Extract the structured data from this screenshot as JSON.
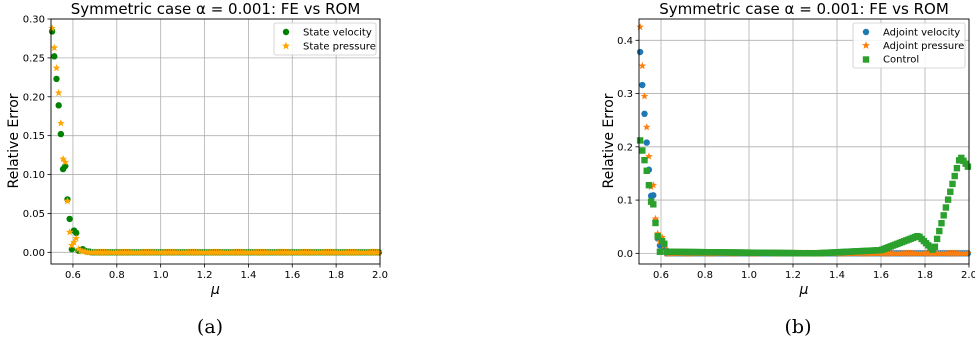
{
  "chart_data": [
    {
      "type": "scatter",
      "title": "Symmetric case α = 0.001: FE vs ROM",
      "xlabel": "μ",
      "ylabel": "Relative Error",
      "xlim": [
        0.5,
        2.0
      ],
      "ylim": [
        -0.015,
        0.3
      ],
      "xticks": [
        "0.6",
        "0.8",
        "1.0",
        "1.2",
        "1.4",
        "1.6",
        "1.8",
        "2.0"
      ],
      "yticks": [
        "0.00",
        "0.05",
        "0.10",
        "0.15",
        "0.20",
        "0.25",
        "0.30"
      ],
      "grid": true,
      "legend_position": "top-right",
      "caption": "(a)",
      "series": [
        {
          "name": "State velocity",
          "marker": "circle",
          "color": "#008000",
          "x": [
            0.505,
            0.515,
            0.525,
            0.535,
            0.545,
            0.555,
            0.565,
            0.575,
            0.585,
            0.595,
            0.605,
            0.615,
            0.625,
            0.635,
            0.645,
            0.655,
            0.665,
            0.675,
            0.685,
            0.695
          ],
          "y": [
            0.284,
            0.252,
            0.223,
            0.189,
            0.152,
            0.107,
            0.111,
            0.068,
            0.043,
            0.004,
            0.028,
            0.025,
            0.002,
            0.003,
            0.004,
            0.002,
            0.001,
            0.001,
            0.0,
            0.0
          ]
        },
        {
          "name": "State pressure",
          "marker": "star",
          "color": "#ffa500",
          "x": [
            0.505,
            0.515,
            0.525,
            0.535,
            0.545,
            0.555,
            0.565,
            0.575,
            0.585,
            0.595,
            0.605,
            0.615,
            0.625,
            0.635,
            0.645,
            0.655,
            0.665,
            0.675,
            0.685,
            0.695
          ],
          "y": [
            0.288,
            0.263,
            0.237,
            0.205,
            0.166,
            0.12,
            0.116,
            0.066,
            0.026,
            0.009,
            0.013,
            0.018,
            0.004,
            0.002,
            0.001,
            0.001,
            0.0,
            0.0,
            0.0,
            0.0
          ]
        }
      ],
      "flat_series": {
        "x_start": 0.705,
        "x_end": 2.0,
        "x_step": 0.01,
        "y": 0.0
      }
    },
    {
      "type": "scatter",
      "title": "Symmetric case α = 0.001: FE vs ROM",
      "xlabel": "μ",
      "ylabel": "Relative Error",
      "xlim": [
        0.5,
        2.0
      ],
      "ylim": [
        -0.02,
        0.44
      ],
      "xticks": [
        "0.6",
        "0.8",
        "1.0",
        "1.2",
        "1.4",
        "1.6",
        "1.8",
        "2.0"
      ],
      "yticks": [
        "0.0",
        "0.1",
        "0.2",
        "0.3",
        "0.4"
      ],
      "grid": true,
      "legend_position": "top-right",
      "caption": "(b)",
      "series": [
        {
          "name": "Adjoint velocity",
          "marker": "circle",
          "color": "#1f77b4",
          "x": [
            0.505,
            0.515,
            0.525,
            0.535,
            0.545,
            0.555,
            0.565,
            0.575,
            0.585,
            0.595,
            0.605,
            0.615,
            0.625
          ],
          "y": [
            0.378,
            0.316,
            0.262,
            0.208,
            0.157,
            0.108,
            0.109,
            0.06,
            0.028,
            0.015,
            0.018,
            0.012,
            0.005
          ]
        },
        {
          "name": "Adjoint pressure",
          "marker": "star",
          "color": "#ff7f0e",
          "x": [
            0.505,
            0.515,
            0.525,
            0.535,
            0.545,
            0.555,
            0.565,
            0.575,
            0.585,
            0.595,
            0.605,
            0.615,
            0.625
          ],
          "y": [
            0.425,
            0.352,
            0.295,
            0.237,
            0.182,
            0.125,
            0.128,
            0.065,
            0.037,
            0.022,
            0.03,
            0.015,
            0.006
          ]
        },
        {
          "name": "Control",
          "marker": "square",
          "color": "#2ca02c",
          "x": [
            0.505,
            0.515,
            0.525,
            0.535,
            0.545,
            0.555,
            0.565,
            0.575,
            0.585,
            0.595,
            0.605,
            0.615
          ],
          "y": [
            0.212,
            0.193,
            0.175,
            0.155,
            0.128,
            0.097,
            0.092,
            0.057,
            0.032,
            0.003,
            0.023,
            0.018
          ]
        }
      ],
      "control_tail": {
        "x_start": 0.625,
        "x_end": 2.0,
        "x_step": 0.01,
        "segments": [
          {
            "x0": 0.62,
            "x1": 1.3,
            "y0": 0.003,
            "y1": 0.0
          },
          {
            "x0": 1.3,
            "x1": 1.6,
            "y0": 0.0,
            "y1": 0.006
          },
          {
            "x0": 1.6,
            "x1": 1.77,
            "y0": 0.006,
            "y1": 0.033
          },
          {
            "x0": 1.77,
            "x1": 1.84,
            "y0": 0.033,
            "y1": 0.005
          },
          {
            "x0": 1.84,
            "x1": 1.96,
            "y0": 0.005,
            "y1": 0.182
          },
          {
            "x0": 1.96,
            "x1": 2.0,
            "y0": 0.182,
            "y1": 0.16
          }
        ]
      }
    }
  ]
}
